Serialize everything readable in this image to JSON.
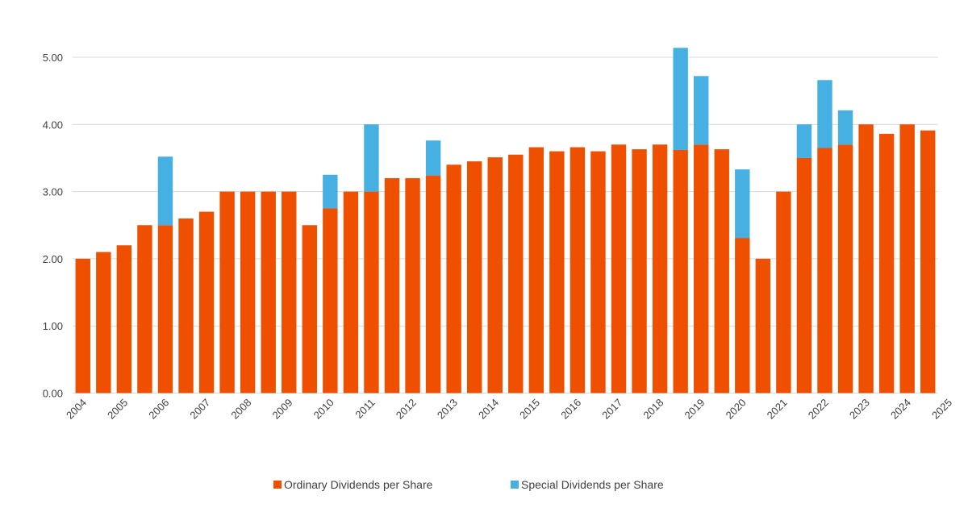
{
  "chart_data": {
    "type": "bar",
    "stacked": true,
    "title": "",
    "xlabel": "",
    "ylabel": "",
    "ylim": [
      0,
      5.5
    ],
    "yticks": [
      "0.00",
      "1.00",
      "2.00",
      "3.00",
      "4.00",
      "5.00"
    ],
    "xtick_labels": [
      "2004",
      "2005",
      "2006",
      "2007",
      "2008",
      "2009",
      "2010",
      "2011",
      "2012",
      "2013",
      "2014",
      "2015",
      "2016",
      "2017",
      "2018",
      "2019",
      "2020",
      "2021",
      "2022",
      "2023",
      "2024",
      "2025"
    ],
    "grid": true,
    "legend_position": "bottom",
    "series": [
      {
        "name": "Ordinary Dividends per Share",
        "color": "#EE5000",
        "values": [
          2.0,
          2.1,
          2.2,
          2.5,
          2.5,
          2.6,
          2.7,
          3.0,
          3.0,
          3.0,
          3.0,
          2.5,
          2.75,
          3.0,
          3.0,
          3.2,
          3.2,
          3.24,
          3.4,
          3.45,
          3.51,
          3.55,
          3.66,
          3.6,
          3.66,
          3.6,
          3.7,
          3.63,
          3.7,
          3.62,
          3.7,
          3.63,
          2.31,
          2.0,
          3.0,
          3.5,
          3.65,
          3.7,
          4.0,
          3.86,
          4.0,
          3.91
        ]
      },
      {
        "name": "Special Dividends per Share",
        "color": "#45B0E1",
        "values": [
          0,
          0,
          0,
          0,
          1.02,
          0,
          0,
          0,
          0,
          0,
          0,
          0,
          0.5,
          0,
          1.0,
          0,
          0,
          0.52,
          0,
          0,
          0,
          0,
          0,
          0,
          0,
          0,
          0,
          0,
          0,
          1.52,
          1.02,
          0,
          1.02,
          0,
          0,
          0.5,
          1.01,
          0.51,
          0,
          0,
          0,
          0
        ]
      }
    ]
  }
}
